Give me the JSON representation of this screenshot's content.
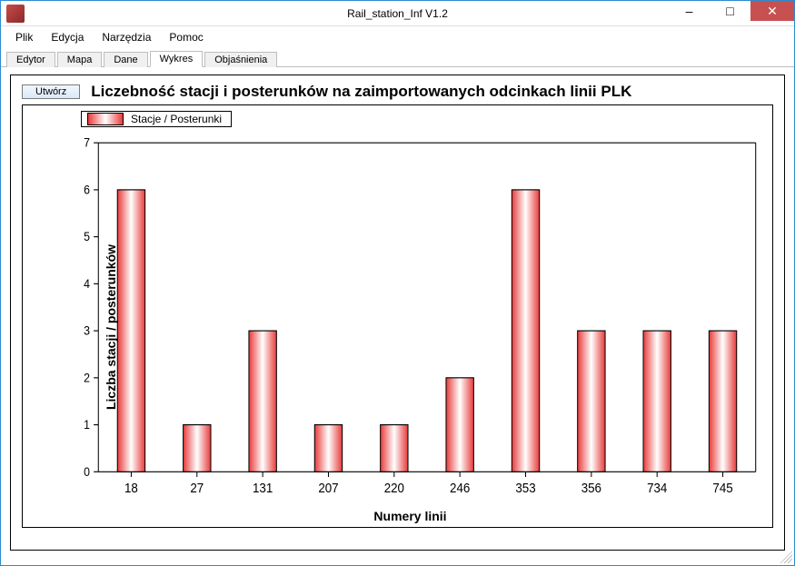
{
  "window": {
    "title": "Rail_station_Inf V1.2",
    "titlebar_bg": "#ffffff",
    "border_color": "#2d8bcf",
    "close_btn_color": "#c75050"
  },
  "menubar": {
    "items": [
      "Plik",
      "Edycja",
      "Narzędzia",
      "Pomoc"
    ]
  },
  "tabs": {
    "items": [
      "Edytor",
      "Mapa",
      "Dane",
      "Wykres",
      "Objaśnienia"
    ],
    "active_index": 3
  },
  "panel": {
    "create_button_label": "Utwórz",
    "title": "Liczebność stacji i posterunków na zaimportowanych odcinkach linii PLK"
  },
  "chart": {
    "type": "bar",
    "legend_label": "Stacje / Posterunki",
    "ylabel": "Liczba stacji / posterunków",
    "xlabel": "Numery linii",
    "categories": [
      "18",
      "27",
      "131",
      "207",
      "220",
      "246",
      "353",
      "356",
      "734",
      "745"
    ],
    "values": [
      6,
      1,
      3,
      1,
      1,
      2,
      6,
      3,
      3,
      3
    ],
    "ylim": [
      0,
      7
    ],
    "ytick_step": 1,
    "bar_gradient": [
      "#e83a3a",
      "#ffffff",
      "#e83a3a"
    ],
    "bar_border_color": "#000000",
    "axis_color": "#000000",
    "background_color": "#ffffff",
    "bar_width_ratio": 0.42,
    "label_fontsize": 13,
    "axis_fontsize": 12,
    "title_fontsize": 17,
    "title_fontweight": "bold",
    "axis_label_fontweight": "bold"
  }
}
